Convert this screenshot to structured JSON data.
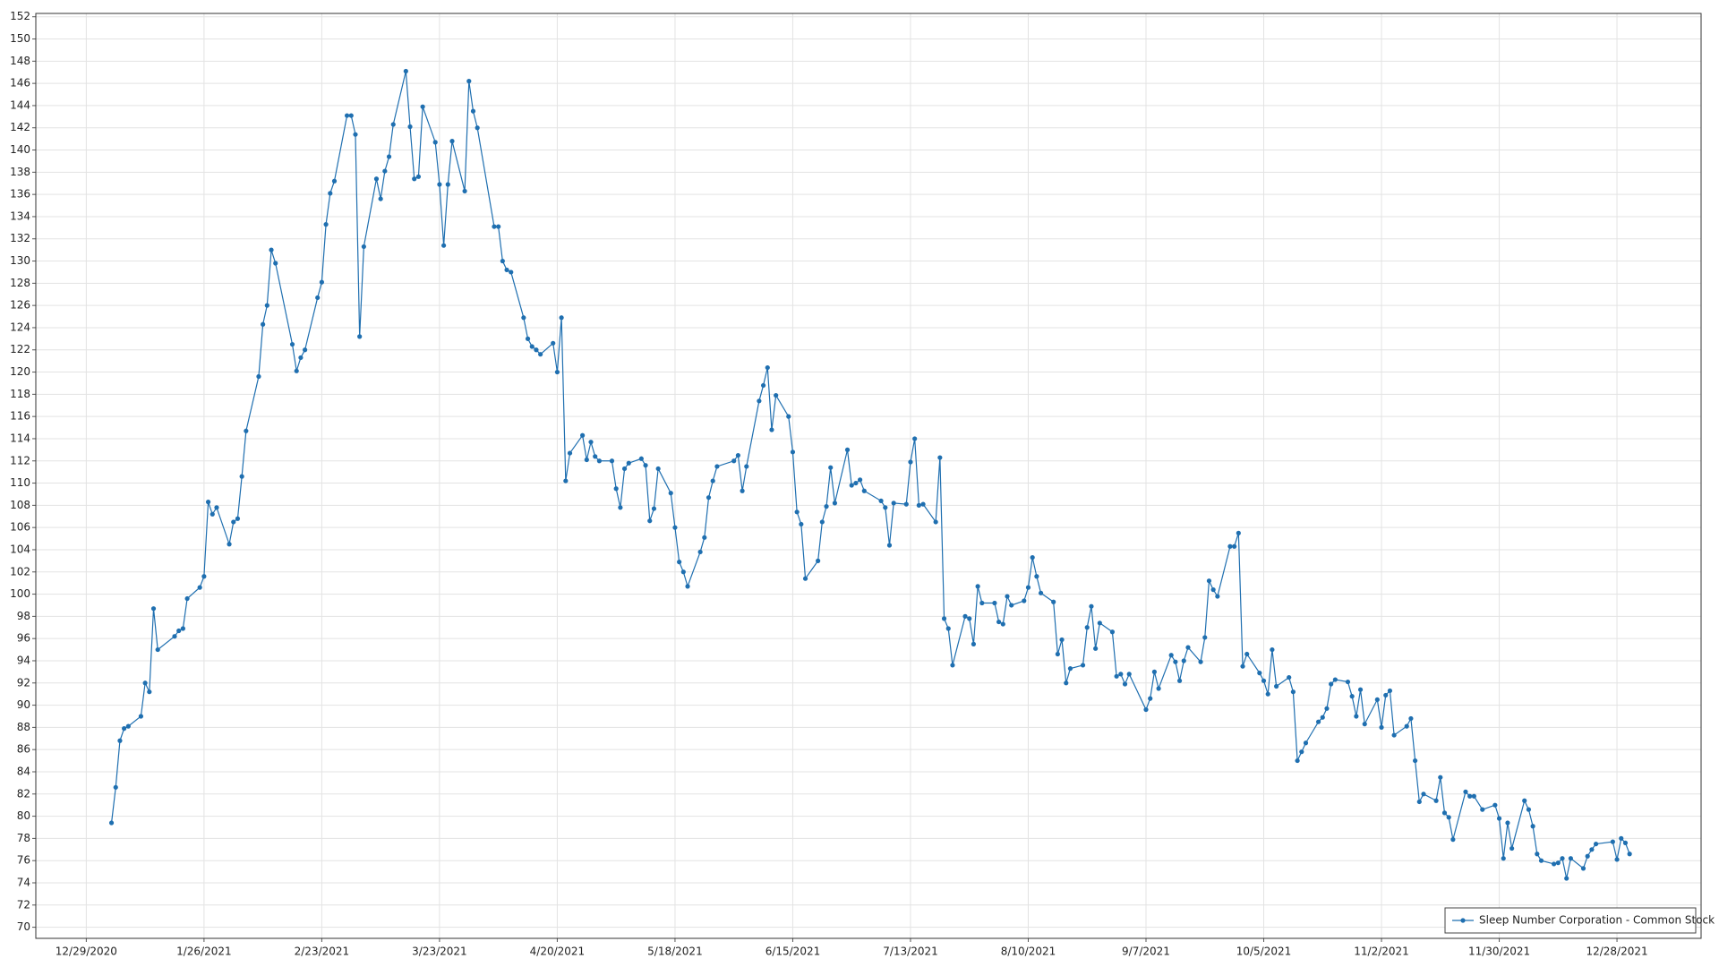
{
  "chart_data": {
    "type": "line",
    "x": [
      "1/4/2021",
      "1/5/2021",
      "1/6/2021",
      "1/7/2021",
      "1/8/2021",
      "1/11/2021",
      "1/12/2021",
      "1/13/2021",
      "1/14/2021",
      "1/15/2021",
      "1/19/2021",
      "1/20/2021",
      "1/21/2021",
      "1/22/2021",
      "1/25/2021",
      "1/26/2021",
      "1/27/2021",
      "1/28/2021",
      "1/29/2021",
      "2/1/2021",
      "2/2/2021",
      "2/3/2021",
      "2/4/2021",
      "2/5/2021",
      "2/8/2021",
      "2/9/2021",
      "2/10/2021",
      "2/11/2021",
      "2/12/2021",
      "2/16/2021",
      "2/17/2021",
      "2/18/2021",
      "2/19/2021",
      "2/22/2021",
      "2/23/2021",
      "2/24/2021",
      "2/25/2021",
      "2/26/2021",
      "3/1/2021",
      "3/2/2021",
      "3/3/2021",
      "3/4/2021",
      "3/5/2021",
      "3/8/2021",
      "3/9/2021",
      "3/10/2021",
      "3/11/2021",
      "3/12/2021",
      "3/15/2021",
      "3/16/2021",
      "3/17/2021",
      "3/18/2021",
      "3/19/2021",
      "3/22/2021",
      "3/23/2021",
      "3/24/2021",
      "3/25/2021",
      "3/26/2021",
      "3/29/2021",
      "3/30/2021",
      "3/31/2021",
      "4/1/2021",
      "4/5/2021",
      "4/6/2021",
      "4/7/2021",
      "4/8/2021",
      "4/9/2021",
      "4/12/2021",
      "4/13/2021",
      "4/14/2021",
      "4/15/2021",
      "4/16/2021",
      "4/19/2021",
      "4/20/2021",
      "4/21/2021",
      "4/22/2021",
      "4/23/2021",
      "4/26/2021",
      "4/27/2021",
      "4/28/2021",
      "4/29/2021",
      "4/30/2021",
      "5/3/2021",
      "5/4/2021",
      "5/5/2021",
      "5/6/2021",
      "5/7/2021",
      "5/10/2021",
      "5/11/2021",
      "5/12/2021",
      "5/13/2021",
      "5/14/2021",
      "5/17/2021",
      "5/18/2021",
      "5/19/2021",
      "5/20/2021",
      "5/21/2021",
      "5/24/2021",
      "5/25/2021",
      "5/26/2021",
      "5/27/2021",
      "5/28/2021",
      "6/1/2021",
      "6/2/2021",
      "6/3/2021",
      "6/4/2021",
      "6/7/2021",
      "6/8/2021",
      "6/9/2021",
      "6/10/2021",
      "6/11/2021",
      "6/14/2021",
      "6/15/2021",
      "6/16/2021",
      "6/17/2021",
      "6/18/2021",
      "6/21/2021",
      "6/22/2021",
      "6/23/2021",
      "6/24/2021",
      "6/25/2021",
      "6/28/2021",
      "6/29/2021",
      "6/30/2021",
      "7/1/2021",
      "7/2/2021",
      "7/6/2021",
      "7/7/2021",
      "7/8/2021",
      "7/9/2021",
      "7/12/2021",
      "7/13/2021",
      "7/14/2021",
      "7/15/2021",
      "7/16/2021",
      "7/19/2021",
      "7/20/2021",
      "7/21/2021",
      "7/22/2021",
      "7/23/2021",
      "7/26/2021",
      "7/27/2021",
      "7/28/2021",
      "7/29/2021",
      "7/30/2021",
      "8/2/2021",
      "8/3/2021",
      "8/4/2021",
      "8/5/2021",
      "8/6/2021",
      "8/9/2021",
      "8/10/2021",
      "8/11/2021",
      "8/12/2021",
      "8/13/2021",
      "8/16/2021",
      "8/17/2021",
      "8/18/2021",
      "8/19/2021",
      "8/20/2021",
      "8/23/2021",
      "8/24/2021",
      "8/25/2021",
      "8/26/2021",
      "8/27/2021",
      "8/30/2021",
      "8/31/2021",
      "9/1/2021",
      "9/2/2021",
      "9/3/2021",
      "9/7/2021",
      "9/8/2021",
      "9/9/2021",
      "9/10/2021",
      "9/13/2021",
      "9/14/2021",
      "9/15/2021",
      "9/16/2021",
      "9/17/2021",
      "9/20/2021",
      "9/21/2021",
      "9/22/2021",
      "9/23/2021",
      "9/24/2021",
      "9/27/2021",
      "9/28/2021",
      "9/29/2021",
      "9/30/2021",
      "10/1/2021",
      "10/4/2021",
      "10/5/2021",
      "10/6/2021",
      "10/7/2021",
      "10/8/2021",
      "10/11/2021",
      "10/12/2021",
      "10/13/2021",
      "10/14/2021",
      "10/15/2021",
      "10/18/2021",
      "10/19/2021",
      "10/20/2021",
      "10/21/2021",
      "10/22/2021",
      "10/25/2021",
      "10/26/2021",
      "10/27/2021",
      "10/28/2021",
      "10/29/2021",
      "11/1/2021",
      "11/2/2021",
      "11/3/2021",
      "11/4/2021",
      "11/5/2021",
      "11/8/2021",
      "11/9/2021",
      "11/10/2021",
      "11/11/2021",
      "11/12/2021",
      "11/15/2021",
      "11/16/2021",
      "11/17/2021",
      "11/18/2021",
      "11/19/2021",
      "11/22/2021",
      "11/23/2021",
      "11/24/2021",
      "11/26/2021",
      "11/29/2021",
      "11/30/2021",
      "12/1/2021",
      "12/2/2021",
      "12/3/2021",
      "12/6/2021",
      "12/7/2021",
      "12/8/2021",
      "12/9/2021",
      "12/10/2021",
      "12/13/2021",
      "12/14/2021",
      "12/15/2021",
      "12/16/2021",
      "12/17/2021",
      "12/20/2021",
      "12/21/2021",
      "12/22/2021",
      "12/23/2021",
      "12/27/2021",
      "12/28/2021",
      "12/29/2021",
      "12/30/2021",
      "12/31/2021"
    ],
    "series": [
      {
        "name": "Sleep Number Corporation - Common Stock",
        "color": "#1f6fb0",
        "values": [
          79.4,
          82.6,
          86.8,
          87.9,
          88.1,
          89.0,
          92.0,
          91.2,
          98.7,
          95.0,
          96.2,
          96.7,
          96.9,
          99.6,
          100.6,
          101.6,
          108.3,
          107.2,
          107.8,
          104.5,
          106.5,
          106.8,
          110.6,
          114.7,
          119.6,
          124.3,
          126.0,
          131.0,
          129.8,
          122.5,
          120.1,
          121.3,
          122.0,
          126.7,
          128.1,
          133.3,
          136.1,
          137.2,
          143.1,
          143.1,
          141.4,
          123.2,
          131.3,
          137.4,
          135.6,
          138.1,
          139.4,
          142.3,
          147.1,
          142.1,
          137.4,
          137.6,
          143.9,
          140.7,
          136.9,
          131.4,
          136.9,
          140.8,
          136.3,
          146.2,
          143.5,
          142.0,
          133.1,
          133.1,
          130.0,
          129.2,
          129.0,
          124.9,
          123.0,
          122.3,
          122.0,
          121.6,
          122.6,
          120.0,
          124.9,
          110.2,
          112.7,
          114.3,
          112.1,
          113.7,
          112.4,
          112.0,
          112.0,
          109.5,
          107.8,
          111.3,
          111.8,
          112.2,
          111.6,
          106.6,
          107.7,
          111.3,
          109.1,
          106.0,
          102.9,
          102.0,
          100.7,
          103.8,
          105.1,
          108.7,
          110.2,
          111.5,
          112.0,
          112.5,
          109.3,
          111.5,
          117.4,
          118.8,
          120.4,
          114.8,
          117.9,
          116.0,
          112.8,
          107.4,
          106.3,
          101.4,
          103.0,
          106.5,
          107.9,
          111.4,
          108.2,
          113.0,
          109.8,
          110.0,
          110.3,
          109.3,
          108.4,
          107.8,
          104.4,
          108.2,
          108.1,
          111.9,
          114.0,
          108.0,
          108.1,
          106.5,
          112.3,
          97.8,
          96.9,
          93.6,
          98.0,
          97.8,
          95.5,
          100.7,
          99.2,
          99.2,
          97.5,
          97.3,
          99.8,
          99.0,
          99.4,
          100.6,
          103.3,
          101.6,
          100.1,
          99.3,
          94.6,
          95.9,
          92.0,
          93.3,
          93.6,
          97.0,
          98.9,
          95.1,
          97.4,
          96.6,
          92.6,
          92.8,
          91.9,
          92.8,
          89.6,
          90.6,
          93.0,
          91.5,
          94.5,
          93.9,
          92.2,
          94.0,
          95.2,
          93.9,
          96.1,
          101.2,
          100.4,
          99.8,
          104.3,
          104.3,
          105.5,
          93.5,
          94.6,
          92.9,
          92.2,
          91.0,
          95.0,
          91.7,
          92.5,
          91.2,
          85.0,
          85.8,
          86.6,
          88.5,
          88.9,
          89.7,
          91.9,
          92.3,
          92.1,
          90.8,
          89.0,
          91.4,
          88.3,
          90.5,
          88.0,
          90.9,
          91.3,
          87.3,
          88.1,
          88.8,
          85.0,
          81.3,
          82.0,
          81.4,
          83.5,
          80.3,
          79.9,
          77.9,
          82.2,
          81.8,
          81.8,
          80.6,
          81.0,
          79.8,
          76.2,
          79.4,
          77.1,
          81.4,
          80.6,
          79.1,
          76.6,
          76.0,
          75.7,
          75.8,
          76.2,
          74.4,
          76.2,
          75.3,
          76.4,
          77.0,
          77.5,
          77.7,
          76.1,
          78.0,
          77.6,
          76.6
        ]
      }
    ],
    "xlim": [
      "12/17/2020",
      "1/17/2022"
    ],
    "xticks": [
      "12/29/2020",
      "1/26/2021",
      "2/23/2021",
      "3/23/2021",
      "4/20/2021",
      "5/18/2021",
      "6/15/2021",
      "7/13/2021",
      "8/10/2021",
      "9/7/2021",
      "10/5/2021",
      "11/2/2021",
      "11/30/2021",
      "12/28/2021"
    ],
    "ylim": [
      69,
      152.3
    ],
    "yticks": [
      70,
      72,
      74,
      76,
      78,
      80,
      82,
      84,
      86,
      88,
      90,
      92,
      94,
      96,
      98,
      100,
      102,
      104,
      106,
      108,
      110,
      112,
      114,
      116,
      118,
      120,
      122,
      124,
      126,
      128,
      130,
      132,
      134,
      136,
      138,
      140,
      142,
      144,
      146,
      148,
      150,
      152
    ],
    "grid": true,
    "markers": true,
    "legend": "lower right"
  }
}
